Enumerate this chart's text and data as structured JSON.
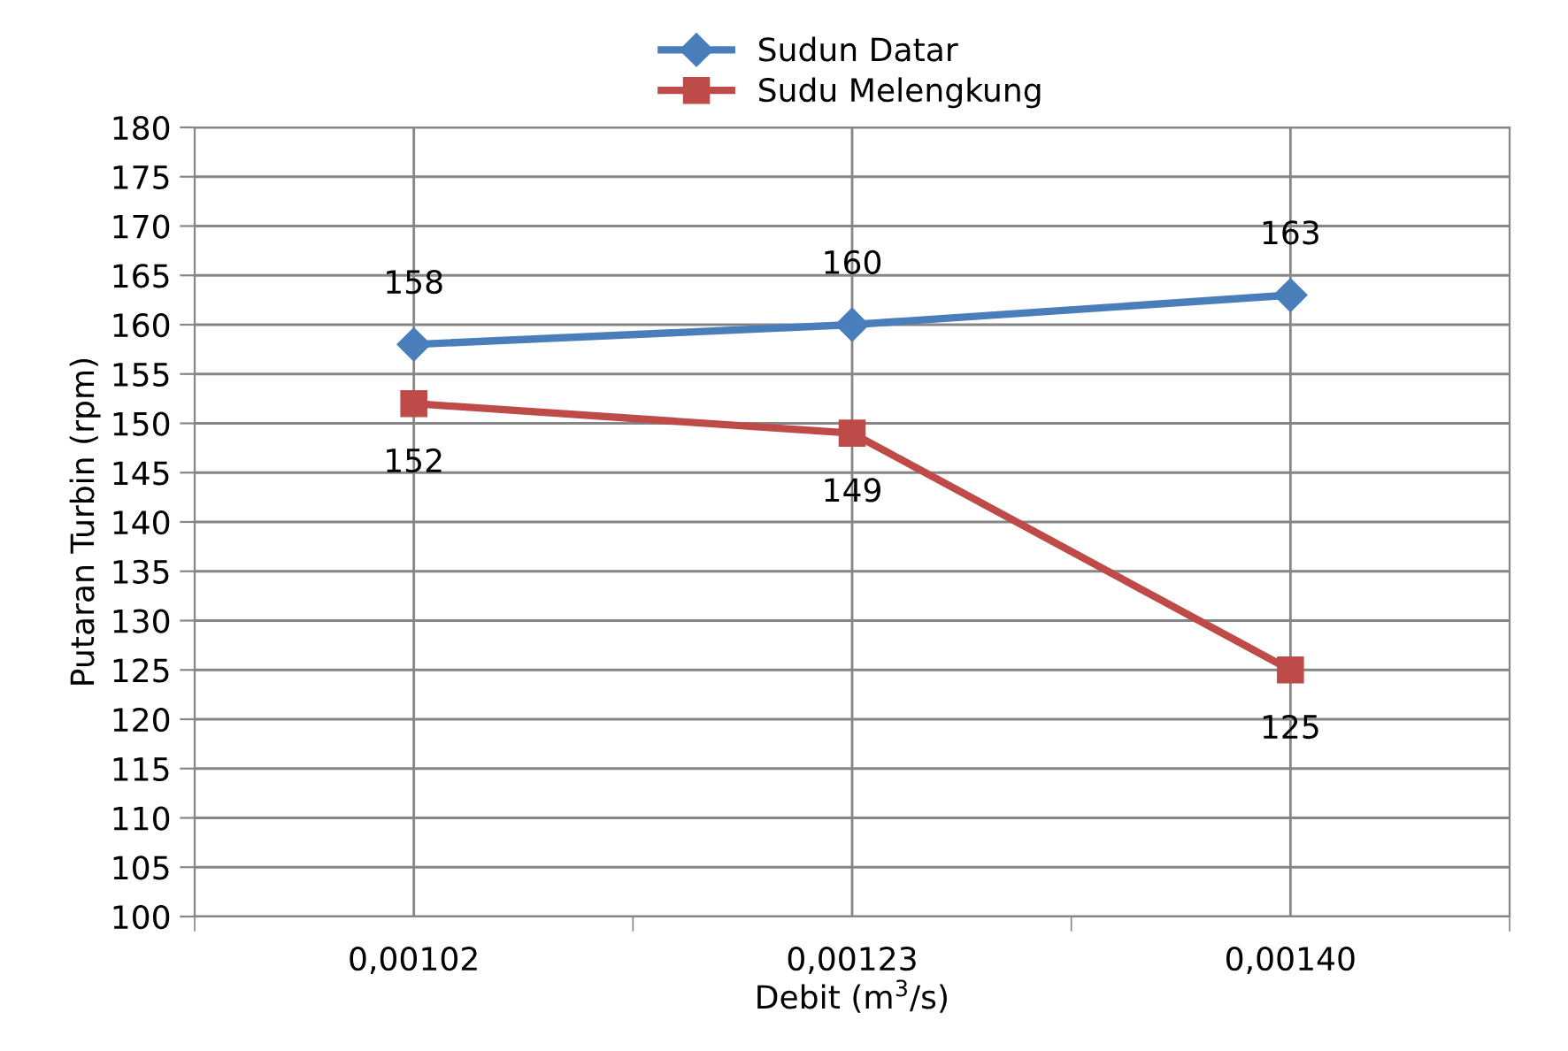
{
  "chart_data": {
    "type": "line",
    "xlabel": "Debit (m$^{3}$/s)",
    "ylabel": "Putaran Turbin (rpm)",
    "categories": [
      "0,00102",
      "0,00123",
      "0,00140"
    ],
    "series": [
      {
        "name": "Sudun Datar",
        "color": "#4a7ebb",
        "marker": "diamond",
        "values": [
          158,
          160,
          163
        ]
      },
      {
        "name": "Sudu Melengkung",
        "color": "#be4b48",
        "marker": "square",
        "values": [
          152,
          149,
          125
        ]
      }
    ],
    "ylim": [
      100,
      180
    ],
    "yticks": [
      100,
      105,
      110,
      115,
      120,
      125,
      130,
      135,
      140,
      145,
      150,
      155,
      160,
      165,
      170,
      175,
      180
    ],
    "grid": true,
    "legend": "top",
    "data_labels": true
  }
}
